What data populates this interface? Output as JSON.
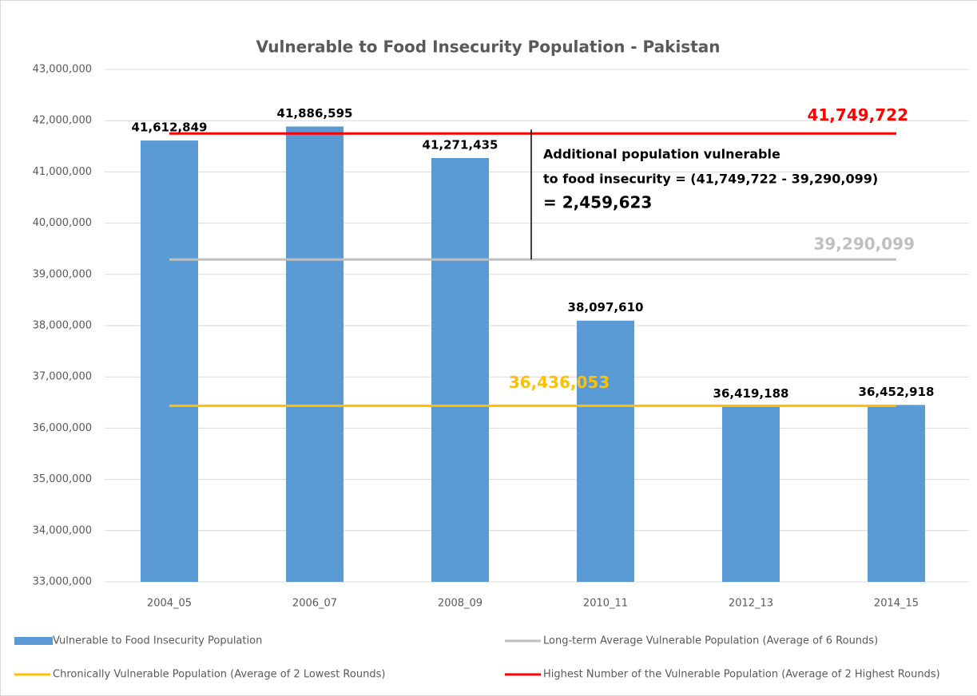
{
  "chart_data": {
    "type": "bar",
    "title": "Vulnerable to Food Insecurity Population - Pakistan",
    "categories": [
      "2004_05",
      "2006_07",
      "2008_09",
      "2010_11",
      "2012_13",
      "2014_15"
    ],
    "series": [
      {
        "name": "Vulnerable to Food Insecurity Population",
        "color": "#5b9bd5",
        "values": [
          41612849,
          41886595,
          41271435,
          38097610,
          36419188,
          36452918
        ],
        "value_labels": [
          "41,612,849",
          "41,886,595",
          "41,271,435",
          "38,097,610",
          "36,419,188",
          "36,452,918"
        ]
      }
    ],
    "reference_lines": [
      {
        "name": "Long-term Average Vulnerable Population (Average of 6 Rounds)",
        "color": "#bfbfbf",
        "value": 39290099,
        "value_label": "39,290,099"
      },
      {
        "name": "Chronically Vulnerable Population (Average of 2 Lowest Rounds)",
        "color": "#ffc000",
        "value": 36436053,
        "value_label": "36,436,053"
      },
      {
        "name": "Highest Number of the Vulnerable Population (Average of 2 Highest Rounds)",
        "color": "#ff0000",
        "value": 41749722,
        "value_label": "41,749,722"
      }
    ],
    "annotation": [
      "Additional population vulnerable",
      "to food insecurity = (41,749,722 - 39,290,099)",
      "= 2,459,623"
    ],
    "ylim": [
      33000000,
      43000000
    ],
    "yticks": [
      {
        "value": 33000000,
        "label": "33,000,000"
      },
      {
        "value": 34000000,
        "label": "34,000,000"
      },
      {
        "value": 35000000,
        "label": "35,000,000"
      },
      {
        "value": 36000000,
        "label": "36,000,000"
      },
      {
        "value": 37000000,
        "label": "37,000,000"
      },
      {
        "value": 38000000,
        "label": "38,000,000"
      },
      {
        "value": 39000000,
        "label": "39,000,000"
      },
      {
        "value": 40000000,
        "label": "40,000,000"
      },
      {
        "value": 41000000,
        "label": "41,000,000"
      },
      {
        "value": 42000000,
        "label": "42,000,000"
      },
      {
        "value": 43000000,
        "label": "43,000,000"
      }
    ],
    "grid": true,
    "legend": "bottom"
  }
}
